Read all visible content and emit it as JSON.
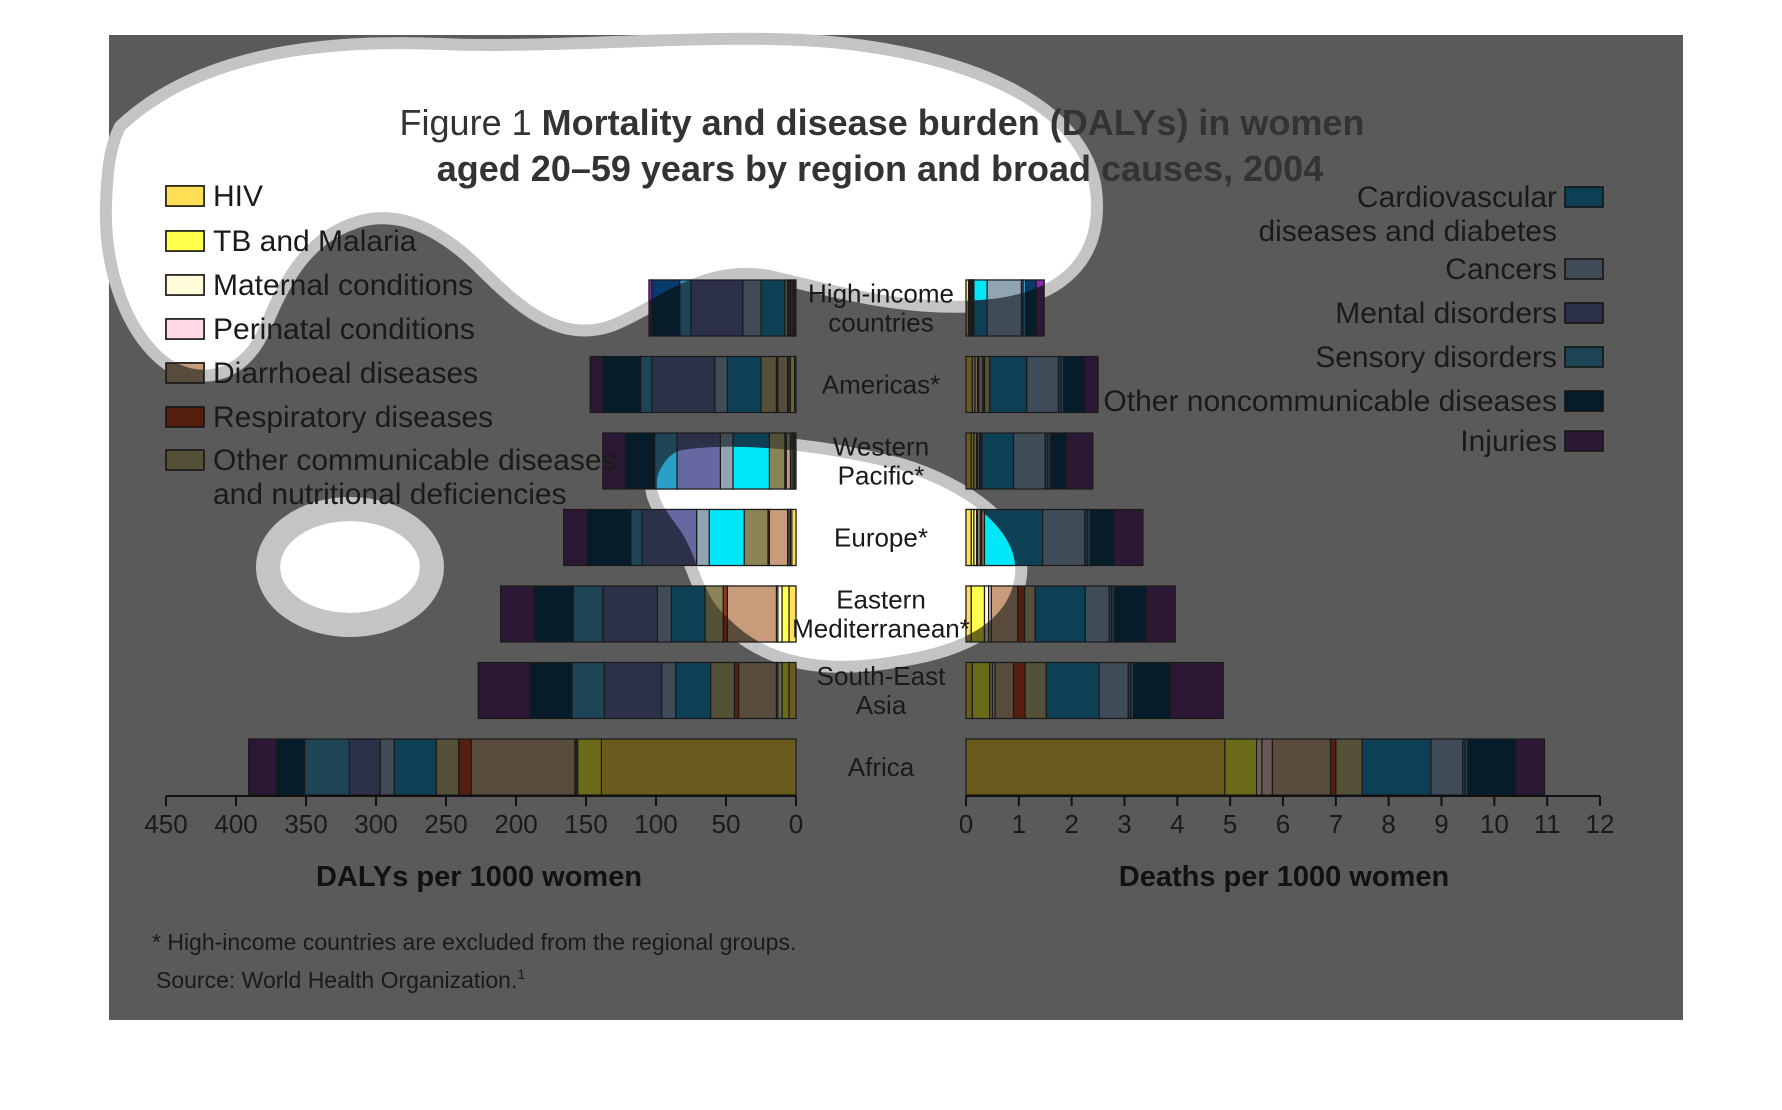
{
  "figure": {
    "label": "Figure 1",
    "title_line1": "Mortality and disease burden (DALYs) in women",
    "title_line2": "aged 20–59 years by region and broad causes, 2004"
  },
  "footnotes": {
    "note": "* High-income countries are excluded from the regional groups.",
    "source": "Source: World Health Organization.",
    "source_ref": "1"
  },
  "colors": {
    "background": "#5a5a5a",
    "text": "#111111",
    "overlay": "#ffffff",
    "overlay_ring": "#c4c4c4"
  },
  "legend_left": [
    {
      "key": "hiv",
      "lines": [
        "HIV"
      ]
    },
    {
      "key": "tb",
      "lines": [
        "TB and Malaria"
      ]
    },
    {
      "key": "maternal",
      "lines": [
        "Maternal conditions"
      ]
    },
    {
      "key": "perinatal",
      "lines": [
        "Perinatal conditions"
      ]
    },
    {
      "key": "diarrhoeal",
      "lines": [
        "Diarrhoeal diseases"
      ]
    },
    {
      "key": "respiratory",
      "lines": [
        "Respiratory diseases"
      ]
    },
    {
      "key": "other_comm",
      "lines": [
        "Other communicable diseases",
        "and nutritional deficiencies"
      ]
    }
  ],
  "legend_right": [
    {
      "key": "cardio",
      "lines": [
        "Cardiovascular",
        "diseases and diabetes"
      ]
    },
    {
      "key": "cancers",
      "lines": [
        "Cancers"
      ]
    },
    {
      "key": "mental",
      "lines": [
        "Mental disorders"
      ]
    },
    {
      "key": "sensory",
      "lines": [
        "Sensory disorders"
      ]
    },
    {
      "key": "other_ncd",
      "lines": [
        "Other noncommunicable diseases"
      ]
    },
    {
      "key": "injuries",
      "lines": [
        "Injuries"
      ]
    }
  ],
  "chart_data": {
    "type": "bar",
    "orientation": "horizontal-stacked-butterfly",
    "title": "Mortality and disease burden (DALYs) in women aged 20–59 years by region and broad causes, 2004",
    "categories": [
      {
        "name": "Africa",
        "lines": [
          "Africa"
        ]
      },
      {
        "name": "South-East Asia",
        "lines": [
          "South-East",
          "Asia"
        ]
      },
      {
        "name": "Eastern Mediterranean*",
        "lines": [
          "Eastern",
          "Mediterranean*"
        ]
      },
      {
        "name": "Europe*",
        "lines": [
          "Europe*"
        ]
      },
      {
        "name": "Western Pacific*",
        "lines": [
          "Western",
          "Pacific*"
        ]
      },
      {
        "name": "Americas*",
        "lines": [
          "Americas*"
        ]
      },
      {
        "name": "High-income countries",
        "lines": [
          "High-income",
          "countries"
        ]
      }
    ],
    "series": [
      {
        "key": "hiv",
        "name": "HIV",
        "color": "#6b5a1e"
      },
      {
        "key": "tb",
        "name": "TB and Malaria",
        "color": "#6b6a18"
      },
      {
        "key": "maternal",
        "name": "Maternal conditions",
        "color": "#6a6450"
      },
      {
        "key": "perinatal",
        "name": "Perinatal conditions",
        "color": "#6a5658"
      },
      {
        "key": "diarrhoeal",
        "name": "Diarrhoeal diseases",
        "color": "#5a4c3c"
      },
      {
        "key": "respiratory",
        "name": "Respiratory diseases",
        "color": "#551f10"
      },
      {
        "key": "other_comm",
        "name": "Other communicable diseases and nutritional deficiencies",
        "color": "#555038"
      },
      {
        "key": "cardio",
        "name": "Cardiovascular diseases and diabetes",
        "color": "#0d3f55"
      },
      {
        "key": "cancers",
        "name": "Cancers",
        "color": "#3f4c58"
      },
      {
        "key": "mental",
        "name": "Mental disorders",
        "color": "#2c3048"
      },
      {
        "key": "sensory",
        "name": "Sensory disorders",
        "color": "#1d4555"
      },
      {
        "key": "other_ncd",
        "name": "Other noncommunicable diseases",
        "color": "#061c2a"
      },
      {
        "key": "injuries",
        "name": "Injuries",
        "color": "#2c1834"
      }
    ],
    "overlay_colors": {
      "hiv": "#ffdf55",
      "tb": "#ffff4d",
      "maternal": "#fffbd8",
      "perinatal": "#ffd8e6",
      "diarrhoeal": "#c89c7a",
      "respiratory": "#8a3a1e",
      "other_comm": "#8a8456",
      "cardio": "#00e8f8",
      "cancers": "#90a4b4",
      "mental": "#6668a2",
      "sensory": "#2aa0c8",
      "other_ncd": "#0a3a6c",
      "injuries": "#8a2ab0"
    },
    "dalys": {
      "xlabel": "DALYs per 1000 women",
      "ticks": [
        450,
        400,
        350,
        300,
        250,
        200,
        150,
        100,
        50,
        0
      ],
      "xlim": [
        0,
        450
      ],
      "direction": "reversed",
      "values": {
        "Africa": [
          139,
          17,
          1,
          1,
          74,
          9,
          16,
          30,
          10,
          22,
          32,
          20,
          20
        ],
        "South-East Asia": [
          5,
          5,
          3,
          1,
          27,
          3,
          17,
          25,
          10,
          41,
          23,
          30,
          37
        ],
        "Eastern Mediterranean*": [
          5,
          5,
          3,
          1,
          35,
          3,
          13,
          24,
          10,
          39,
          21,
          28,
          24
        ],
        "Europe*": [
          3,
          1,
          1,
          1,
          13,
          1,
          17,
          25,
          9,
          39,
          8,
          31,
          17
        ],
        "Western Pacific*": [
          1,
          1,
          1,
          1,
          3,
          1,
          11,
          26,
          9,
          31,
          16,
          21,
          16
        ],
        "Americas*": [
          1,
          3,
          1,
          1,
          7,
          1,
          11,
          24,
          9,
          45,
          8,
          27,
          9
        ],
        "High-income countries": [
          1,
          1,
          1,
          1,
          1,
          1,
          2,
          17,
          13,
          37,
          8,
          20,
          2
        ]
      }
    },
    "deaths": {
      "xlabel": "Deaths per 1000 women",
      "ticks": [
        0,
        1,
        2,
        3,
        4,
        5,
        6,
        7,
        8,
        9,
        10,
        11,
        12
      ],
      "xlim": [
        0,
        12
      ],
      "direction": "normal",
      "values": {
        "Africa": [
          4.9,
          0.6,
          0.1,
          0.2,
          1.1,
          0.1,
          0.5,
          1.3,
          0.6,
          0.05,
          0.05,
          0.9,
          0.55
        ],
        "South-East Asia": [
          0.12,
          0.33,
          0.05,
          0.05,
          0.35,
          0.22,
          0.4,
          1.0,
          0.55,
          0.05,
          0.05,
          0.7,
          1.0
        ],
        "Eastern Mediterranean*": [
          0.1,
          0.25,
          0.08,
          0.05,
          0.5,
          0.13,
          0.2,
          0.95,
          0.45,
          0.05,
          0.05,
          0.6,
          0.55
        ],
        "Europe*": [
          0.1,
          0.05,
          0.05,
          0.02,
          0.05,
          0.03,
          0.05,
          1.1,
          0.8,
          0.05,
          0.05,
          0.45,
          0.55
        ],
        "Western Pacific*": [
          0.1,
          0.05,
          0.05,
          0.02,
          0.04,
          0.02,
          0.02,
          0.6,
          0.6,
          0.05,
          0.05,
          0.3,
          0.5
        ],
        "Americas*": [
          0.12,
          0.05,
          0.05,
          0.02,
          0.08,
          0.03,
          0.1,
          0.7,
          0.6,
          0.05,
          0.05,
          0.4,
          0.25
        ],
        "High-income countries": [
          0.05,
          0.02,
          0.02,
          0.01,
          0.02,
          0.01,
          0.02,
          0.25,
          0.65,
          0.03,
          0.05,
          0.2,
          0.15
        ]
      }
    }
  }
}
